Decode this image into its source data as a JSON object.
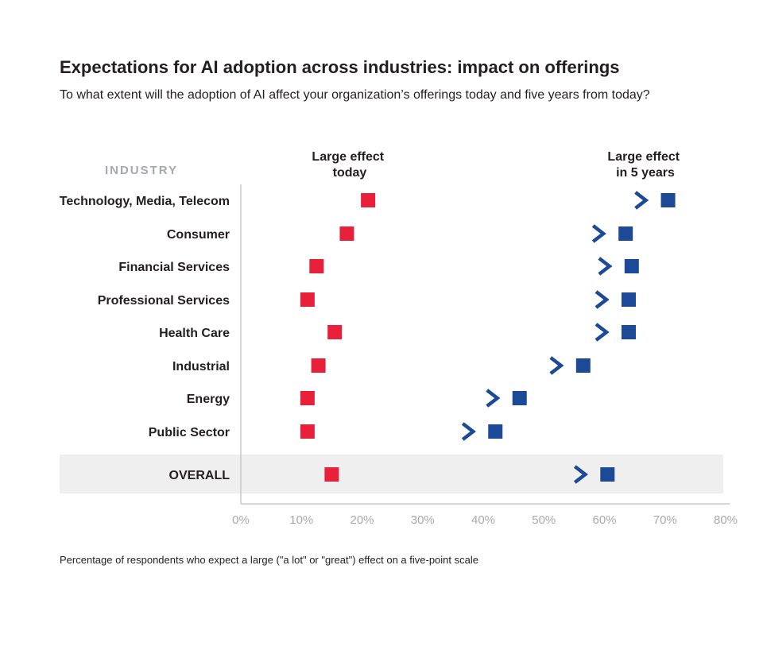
{
  "chart_data": {
    "type": "dot-arrow",
    "title": "Expectations for AI adoption across industries: impact on offerings",
    "subtitle": "To what extent will the adoption of AI affect your organization’s offerings today and five years from today?",
    "category_header": "INDUSTRY",
    "series": [
      {
        "name": "Large effect today",
        "name_lines": [
          "Large effect",
          "today"
        ],
        "color": "#e8203a"
      },
      {
        "name": "Large effect in 5 years",
        "name_lines": [
          "Large effect",
          "in 5 years"
        ],
        "color": "#1c4a96"
      }
    ],
    "categories": [
      "Technology, Media, Telecom",
      "Consumer",
      "Financial Services",
      "Professional Services",
      "Health Care",
      "Industrial",
      "Energy",
      "Public Sector",
      "OVERALL"
    ],
    "today": [
      21,
      17.5,
      12.5,
      11,
      15.5,
      12.8,
      11,
      11,
      15
    ],
    "in_5_years": [
      70.5,
      63.5,
      64.5,
      64,
      64,
      56.5,
      46,
      42,
      60.5
    ],
    "highlight_category": "OVERALL",
    "xlim": [
      0,
      80
    ],
    "x_ticks": [
      "0%",
      "10%",
      "20%",
      "30%",
      "40%",
      "50%",
      "60%",
      "70%",
      "80%"
    ],
    "footnote": "Percentage of respondents who expect a large (\"a lot\" or \"great\") effect on a five-point scale"
  }
}
